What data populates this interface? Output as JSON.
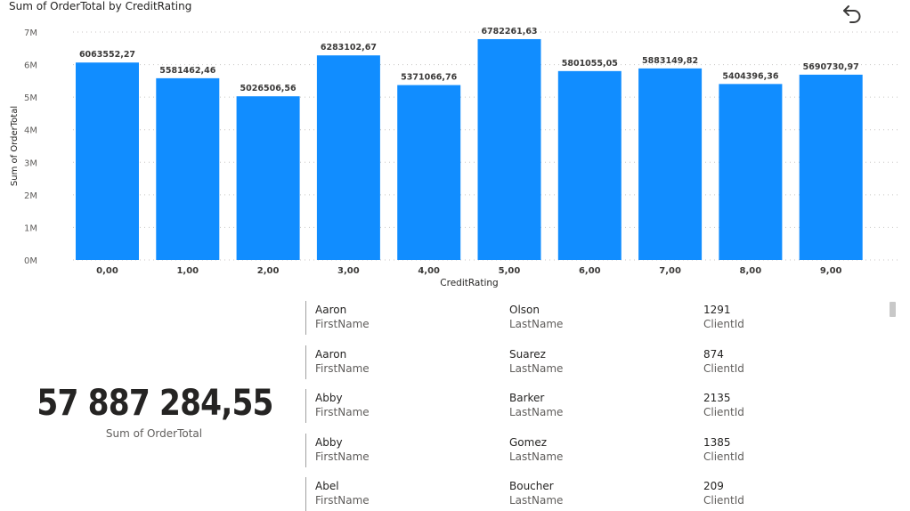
{
  "chart_data": {
    "type": "bar",
    "title": "Sum of OrderTotal by CreditRating",
    "xlabel": "CreditRating",
    "ylabel": "Sum of OrderTotal",
    "categories": [
      "0,00",
      "1,00",
      "2,00",
      "3,00",
      "4,00",
      "5,00",
      "6,00",
      "7,00",
      "8,00",
      "9,00"
    ],
    "values": [
      6063552.27,
      5581462.46,
      5026506.56,
      6283102.67,
      5371066.76,
      6782261.63,
      5801055.05,
      5883149.82,
      5404396.36,
      5690730.97
    ],
    "value_labels": [
      "6063552,27",
      "5581462,46",
      "5026506,56",
      "6283102,67",
      "5371066,76",
      "6782261,63",
      "5801055,05",
      "5883149,82",
      "5404396,36",
      "5690730,97"
    ],
    "ylim": [
      0,
      7000000
    ],
    "yticks": [
      0,
      1000000,
      2000000,
      3000000,
      4000000,
      5000000,
      6000000,
      7000000
    ],
    "ytick_labels": [
      "0M",
      "1M",
      "2M",
      "3M",
      "4M",
      "5M",
      "6M",
      "7M"
    ],
    "grid": true,
    "bar_color": "#118DFF"
  },
  "toolbar": {
    "undo_icon": "undo-icon"
  },
  "kpi": {
    "value": "57 887 284,55",
    "label": "Sum of OrderTotal"
  },
  "client_cards": {
    "field_labels": [
      "FirstName",
      "LastName",
      "ClientId"
    ],
    "rows": [
      [
        "Aaron",
        "Olson",
        "1291"
      ],
      [
        "Aaron",
        "Suarez",
        "874"
      ],
      [
        "Abby",
        "Barker",
        "2135"
      ],
      [
        "Abby",
        "Gomez",
        "1385"
      ],
      [
        "Abel",
        "Boucher",
        "209"
      ]
    ]
  }
}
